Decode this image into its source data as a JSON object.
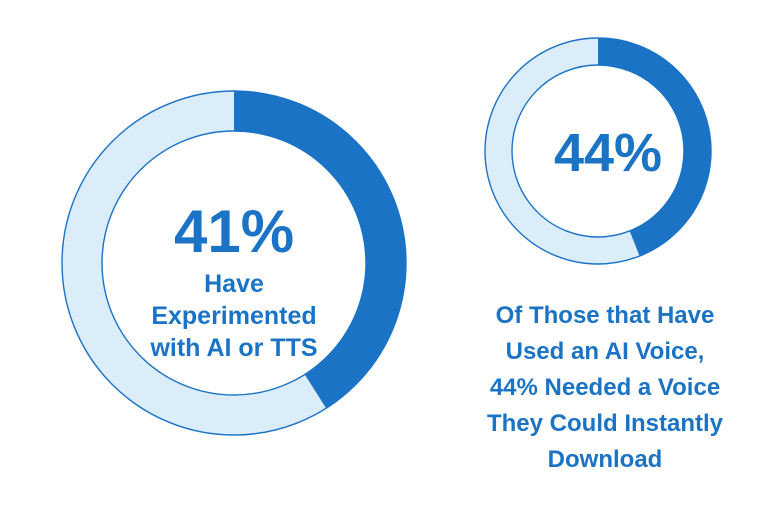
{
  "colors": {
    "accent": "#1b73c6",
    "track": "#dcedfa",
    "outline": "#1b73c6",
    "background": "#ffffff"
  },
  "chart_data": [
    {
      "type": "pie",
      "variant": "donut",
      "value": 41,
      "max": 100,
      "center_value_label": "41%",
      "center_text_lines": [
        "Have",
        "Experimented",
        "with AI or TTS"
      ],
      "title": "",
      "caption_lines": []
    },
    {
      "type": "pie",
      "variant": "donut",
      "value": 44,
      "max": 100,
      "center_value_label": "44%",
      "center_text_lines": [],
      "title": "",
      "caption_lines": [
        "Of Those that Have",
        "Used an AI Voice,",
        "44% Needed a Voice",
        "They Could Instantly",
        "Download"
      ]
    }
  ]
}
